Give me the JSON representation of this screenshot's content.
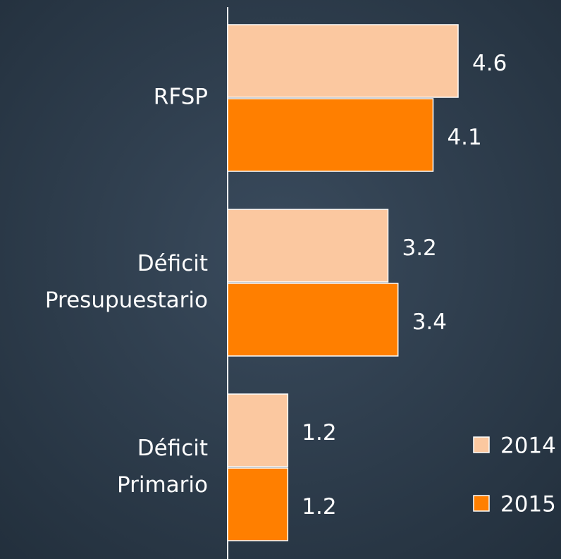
{
  "chart_data": {
    "type": "bar",
    "orientation": "horizontal",
    "categories": [
      "RFSP",
      "Déficit Presupuestario",
      "Déficit Primario"
    ],
    "series": [
      {
        "name": "2014",
        "color": "#fbc8a0",
        "values": [
          4.6,
          3.2,
          1.2
        ]
      },
      {
        "name": "2015",
        "color": "#ff7f00",
        "values": [
          4.1,
          3.4,
          1.2
        ]
      }
    ],
    "legend": "lower right"
  }
}
